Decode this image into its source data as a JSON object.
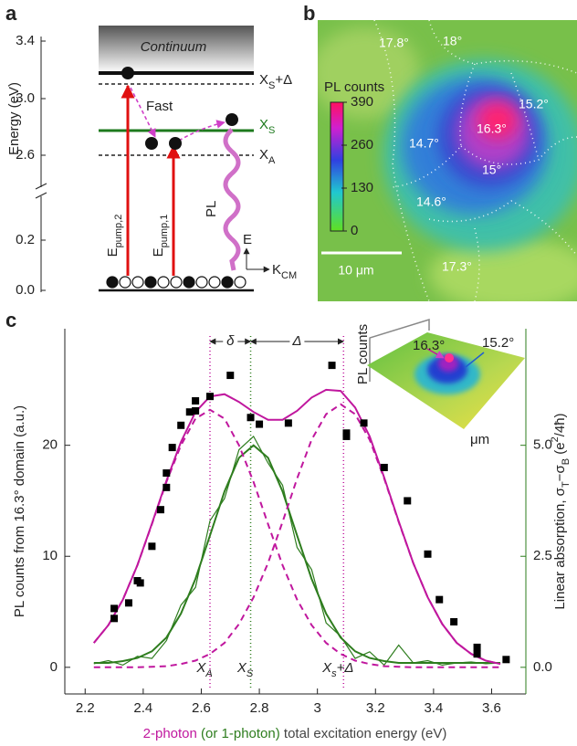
{
  "panel_labels": [
    "a",
    "b",
    "c"
  ],
  "diagram_a": {
    "yticks": [
      "3.4",
      "3.0",
      "2.6",
      "0.2",
      "0.0"
    ],
    "ylabel": "Energy (eV)",
    "continuum": "Continuum",
    "levels": [
      [
        {
          "text": "X"
        },
        {
          "text": "S",
          "shift": "sub"
        },
        {
          "text": "+Δ"
        }
      ],
      [
        {
          "text": "X",
          "color": "#1e7a1e"
        },
        {
          "text": "S",
          "shift": "sub",
          "color": "#1e7a1e"
        }
      ],
      [
        {
          "text": "X"
        },
        {
          "text": "A",
          "shift": "sub"
        }
      ]
    ],
    "fast": "Fast",
    "pl": "PL",
    "pumps": [
      [
        {
          "text": "E"
        },
        {
          "text": "pump,2",
          "shift": "sub"
        }
      ],
      [
        {
          "text": "E"
        },
        {
          "text": "pump,1",
          "shift": "sub"
        }
      ]
    ],
    "axis_e": "E",
    "axis_k": [
      {
        "text": "K"
      },
      {
        "text": "CM",
        "shift": "sub"
      }
    ]
  },
  "diagram_b": {
    "colorbar_title": "PL counts",
    "colorbar_lim": [
      0,
      390
    ],
    "colorbar_ticks": [
      390,
      260,
      130,
      0
    ],
    "domains": [
      "17.8°",
      "18°",
      "15.2°",
      "16.3°",
      "14.7°",
      "15°",
      "14.6°",
      "17.3°"
    ],
    "scalebar": "10 μm"
  },
  "chart_data": {
    "type": "line",
    "xlabel": [
      {
        "text": "2-photon",
        "color": "#c0179e"
      },
      {
        "text": " (or 1-photon)",
        "color": "#2e7d1e"
      },
      {
        "text": " total excitation energy (eV)",
        "color": "#444444"
      }
    ],
    "ylabel": "PL counts from 16.3° domain (a.u.)",
    "y2label": [
      {
        "text": "Linear absorption, σ"
      },
      {
        "text": "T",
        "shift": "sub"
      },
      {
        "text": "−σ"
      },
      {
        "text": "B",
        "shift": "sub"
      },
      {
        "text": " (e"
      },
      {
        "text": "2",
        "shift": "super"
      },
      {
        "text": "/4ħ)"
      }
    ],
    "y2color": "#2e7d1e",
    "xlim": [
      2.13,
      3.718
    ],
    "xticks": [
      2.2,
      2.4,
      2.6,
      2.8,
      3.0,
      3.2,
      3.4,
      3.6
    ],
    "ylim": [
      -2.4,
      30.5
    ],
    "yticks": [
      0,
      10,
      20
    ],
    "y2lim": [
      -0.6,
      7.625
    ],
    "y2ticks": [
      {
        "value": 0,
        "label": "0.0"
      },
      {
        "value": 2.5,
        "label": "2.5"
      },
      {
        "value": 5,
        "label": "5.0"
      }
    ],
    "x": [
      2.23,
      2.28,
      2.33,
      2.38,
      2.43,
      2.48,
      2.53,
      2.58,
      2.63,
      2.68,
      2.73,
      2.78,
      2.83,
      2.88,
      2.93,
      2.98,
      3.03,
      3.08,
      3.13,
      3.18,
      3.23,
      3.28,
      3.33,
      3.38,
      3.43,
      3.48,
      3.53,
      3.58,
      3.63
    ],
    "series": [
      {
        "style": "thin",
        "color": "#2e7d1e",
        "axis": "y2",
        "values": [
          0.08,
          0.15,
          0.05,
          0.25,
          0.2,
          0.6,
          1.4,
          1.8,
          3.3,
          3.8,
          4.9,
          5.2,
          4.6,
          4.1,
          2.7,
          2.2,
          1.0,
          0.7,
          0.2,
          0.35,
          0.05,
          0.5,
          0.1,
          0.15,
          0.05,
          0.1,
          0.12,
          0.08,
          0.1
        ]
      },
      {
        "style": "solid",
        "color": "#2e7d1e",
        "axis": "y2",
        "values": [
          0.1,
          0.1,
          0.14,
          0.21,
          0.36,
          0.67,
          1.21,
          1.99,
          2.97,
          3.96,
          4.72,
          5.0,
          4.72,
          3.96,
          2.97,
          1.99,
          1.21,
          0.67,
          0.36,
          0.21,
          0.14,
          0.1,
          0.1,
          0.1,
          0.1,
          0.1,
          0.1,
          0.1,
          0.1
        ]
      },
      {
        "style": "dashed",
        "color": "#c0179e",
        "values": [
          2.2,
          3.8,
          6.1,
          9.2,
          12.9,
          16.7,
          20.0,
          22.4,
          23.2,
          22.4,
          20.0,
          16.7,
          12.9,
          9.2,
          6.1,
          3.8,
          2.2,
          1.2,
          0.6,
          0.3,
          0.1,
          0.05,
          0,
          0,
          0,
          0,
          0,
          0,
          0
        ]
      },
      {
        "style": "dashed",
        "color": "#c0179e",
        "values": [
          0,
          0,
          0,
          0,
          0.05,
          0.1,
          0.3,
          0.6,
          1.2,
          2.2,
          3.9,
          6.3,
          9.4,
          13.1,
          17.0,
          20.5,
          22.8,
          23.7,
          22.8,
          20.5,
          17.0,
          13.1,
          9.4,
          6.3,
          3.9,
          2.2,
          1.2,
          0.6,
          0.3
        ]
      },
      {
        "style": "solid",
        "color": "#c0179e",
        "values": [
          2.2,
          3.8,
          6.1,
          9.2,
          12.95,
          16.8,
          20.3,
          23.0,
          24.4,
          24.6,
          23.9,
          23.0,
          22.3,
          22.3,
          23.1,
          24.3,
          25.0,
          24.9,
          23.4,
          20.8,
          17.1,
          13.15,
          9.4,
          6.3,
          3.9,
          2.2,
          1.2,
          0.6,
          0.3
        ]
      },
      {
        "style": "markers",
        "color": "#000000",
        "x": [
          2.3,
          2.3,
          2.35,
          2.38,
          2.39,
          2.43,
          2.46,
          2.48,
          2.48,
          2.5,
          2.53,
          2.56,
          2.58,
          2.58,
          2.63,
          2.7,
          2.77,
          2.8,
          2.9,
          3.05,
          3.1,
          3.1,
          3.16,
          3.23,
          3.31,
          3.38,
          3.42,
          3.47,
          3.55,
          3.55,
          3.65
        ],
        "values": [
          5.3,
          4.4,
          5.8,
          7.8,
          7.6,
          10.9,
          14.2,
          16.2,
          17.5,
          19.8,
          21.8,
          23.0,
          24.0,
          23.1,
          24.4,
          26.3,
          22.5,
          21.9,
          22.0,
          27.2,
          21.1,
          20.8,
          22.0,
          18.0,
          15.0,
          10.2,
          6.1,
          4.1,
          1.8,
          1.2,
          0.7
        ]
      }
    ],
    "markers": [
      {
        "x": 2.63,
        "color": "#c0179e",
        "label": [
          {
            "text": "X"
          },
          {
            "text": "A",
            "shift": "sub"
          }
        ]
      },
      {
        "x": 2.77,
        "color": "#2e7d1e",
        "label": [
          {
            "text": "X"
          },
          {
            "text": "S",
            "shift": "sub"
          }
        ]
      },
      {
        "x": 3.09,
        "color": "#c0179e",
        "label": [
          {
            "text": "X"
          },
          {
            "text": "s",
            "shift": "sub"
          },
          {
            "text": "+Δ"
          }
        ]
      }
    ],
    "spacings": [
      {
        "from": 2.63,
        "to": 2.77,
        "label": "δ"
      },
      {
        "from": 2.77,
        "to": 3.09,
        "label": "Δ"
      }
    ],
    "inset": {
      "ylabel": "PL counts",
      "peaks": [
        {
          "label": "16.3°",
          "color": "#c0179e"
        },
        {
          "label": "15.2°",
          "color": "#2060d0"
        }
      ],
      "xlabel": "μm"
    }
  }
}
